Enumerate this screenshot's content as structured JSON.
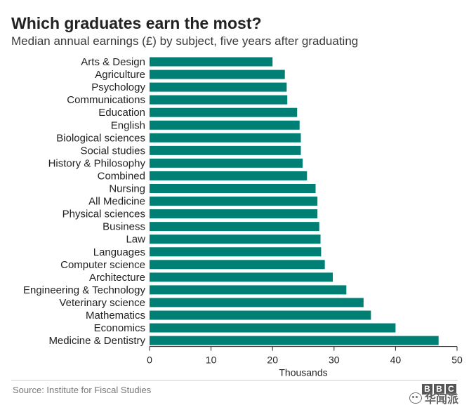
{
  "chart_data": {
    "type": "bar",
    "orientation": "horizontal",
    "title": "Which graduates earn the most?",
    "subtitle": "Median annual earnings (£) by subject, five years after graduating",
    "xlabel": "Thousands",
    "ylabel": "",
    "xlim": [
      0,
      50
    ],
    "xticks": [
      0,
      10,
      20,
      30,
      40,
      50
    ],
    "grid": false,
    "bar_color": "#008075",
    "categories": [
      "Arts & Design",
      "Agriculture",
      "Psychology",
      "Communications",
      "Education",
      "English",
      "Biological sciences",
      "Social studies",
      "History & Philosophy",
      "Combined",
      "Nursing",
      "All Medicine",
      "Physical sciences",
      "Business",
      "Law",
      "Languages",
      "Computer science",
      "Architecture",
      "Engineering & Technology",
      "Veterinary science",
      "Mathematics",
      "Economics",
      "Medicine & Dentistry"
    ],
    "values": [
      20.0,
      22.0,
      22.3,
      22.4,
      24.0,
      24.4,
      24.6,
      24.6,
      24.9,
      25.6,
      27.0,
      27.3,
      27.3,
      27.6,
      27.8,
      27.9,
      28.5,
      29.8,
      32.0,
      34.8,
      36.0,
      40.0,
      47.0
    ]
  },
  "footer": {
    "source": "Source: Institute for Fiscal Studies",
    "logo_letters": [
      "B",
      "B",
      "C"
    ],
    "watermark": "华闻派"
  }
}
